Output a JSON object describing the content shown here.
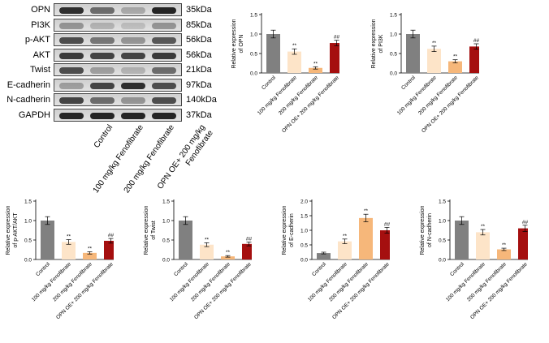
{
  "blot": {
    "proteins": [
      {
        "name": "OPN",
        "size": "35kDa",
        "intensity": [
          0.85,
          0.55,
          0.25,
          0.9
        ]
      },
      {
        "name": "PI3K",
        "size": "85kDa",
        "intensity": [
          0.35,
          0.2,
          0.15,
          0.35
        ]
      },
      {
        "name": "p-AKT",
        "size": "56kDa",
        "intensity": [
          0.7,
          0.5,
          0.35,
          0.65
        ]
      },
      {
        "name": "AKT",
        "size": "56kDa",
        "intensity": [
          0.8,
          0.75,
          0.75,
          0.8
        ]
      },
      {
        "name": "Twist",
        "size": "21kDa",
        "intensity": [
          0.7,
          0.3,
          0.2,
          0.55
        ]
      },
      {
        "name": "E-cadherin",
        "size": "97kDa",
        "intensity": [
          0.3,
          0.75,
          0.85,
          0.7
        ]
      },
      {
        "name": "N-cadherin",
        "size": "140kDa",
        "intensity": [
          0.75,
          0.55,
          0.35,
          0.7
        ]
      },
      {
        "name": "GAPDH",
        "size": "37kDa",
        "intensity": [
          0.9,
          0.9,
          0.9,
          0.9
        ]
      }
    ],
    "lanes": [
      "Control",
      "100 mg/kg Fenofibrate",
      "200 mg/kg Fenofibrate",
      "OPN OE+ 200 mg/kg Fenofibrate"
    ]
  },
  "chart_data": [
    {
      "type": "bar",
      "ylabel_1": "Relative expression",
      "ylabel_2": "of OPN",
      "categories": [
        "Control",
        "100 mg/kg Fenofibrate",
        "200 mg/kg Fenofibrate",
        "OPN OE+ 200 mg/kg Fenofibrate"
      ],
      "values": [
        1.0,
        0.55,
        0.13,
        0.77
      ],
      "errors": [
        0.1,
        0.07,
        0.03,
        0.07
      ],
      "annotations": [
        "",
        "**",
        "**",
        "##"
      ],
      "ylim": [
        0,
        1.5
      ],
      "ticks": [
        "0.0",
        "0.5",
        "1.0",
        "1.5"
      ]
    },
    {
      "type": "bar",
      "ylabel_1": "Relative expression",
      "ylabel_2": "of PI3K",
      "categories": [
        "Control",
        "100 mg/kg Fenofibrate",
        "200 mg/kg Fenofibrate",
        "OPN OE+ 200 mg/kg Fenofibrate"
      ],
      "values": [
        1.0,
        0.62,
        0.3,
        0.68
      ],
      "errors": [
        0.1,
        0.07,
        0.04,
        0.07
      ],
      "annotations": [
        "",
        "**",
        "**",
        "##"
      ],
      "ylim": [
        0,
        1.5
      ],
      "ticks": [
        "0.0",
        "0.5",
        "1.0",
        "1.5"
      ]
    },
    {
      "type": "bar",
      "ylabel_1": "Relative expression",
      "ylabel_2": "of p-AKT/AKT",
      "categories": [
        "Control",
        "100 mg/kg Fenofibrate",
        "200 mg/kg Fenofibrate",
        "OPN OE+ 200 mg/kg Fenofibrate"
      ],
      "values": [
        1.0,
        0.45,
        0.17,
        0.48
      ],
      "errors": [
        0.1,
        0.06,
        0.03,
        0.06
      ],
      "annotations": [
        "",
        "**",
        "**",
        "##"
      ],
      "ylim": [
        0,
        1.5
      ],
      "ticks": [
        "0.0",
        "0.5",
        "1.0",
        "1.5"
      ]
    },
    {
      "type": "bar",
      "ylabel_1": "Relative expression",
      "ylabel_2": "of Twist",
      "categories": [
        "Control",
        "100 mg/kg Fenofibrate",
        "200 mg/kg Fenofibrate",
        "OPN OE+ 200 mg/kg Fenofibrate"
      ],
      "values": [
        1.0,
        0.38,
        0.08,
        0.4
      ],
      "errors": [
        0.1,
        0.05,
        0.02,
        0.05
      ],
      "annotations": [
        "",
        "**",
        "**",
        "##"
      ],
      "ylim": [
        0,
        1.5
      ],
      "ticks": [
        "0.0",
        "0.5",
        "1.0",
        "1.5"
      ]
    },
    {
      "type": "bar",
      "ylabel_1": "Relative expression",
      "ylabel_2": "of E-cadherin",
      "categories": [
        "Control",
        "100 mg/kg Fenofibrate",
        "200 mg/kg Fenofibrate",
        "OPN OE+ 200 mg/kg Fenofibrate"
      ],
      "values": [
        0.22,
        0.62,
        1.42,
        1.0
      ],
      "errors": [
        0.03,
        0.08,
        0.13,
        0.1
      ],
      "annotations": [
        "",
        "**",
        "**",
        "##"
      ],
      "ylim": [
        0,
        2.0
      ],
      "ticks": [
        "0.0",
        "0.5",
        "1.0",
        "1.5",
        "2.0"
      ]
    },
    {
      "type": "bar",
      "ylabel_1": "Relative expression",
      "ylabel_2": "of N-cadherin",
      "categories": [
        "Control",
        "100 mg/kg Fenofibrate",
        "200 mg/kg Fenofibrate",
        "OPN OE+ 200 mg/kg Fenofibrate"
      ],
      "values": [
        1.0,
        0.7,
        0.26,
        0.8
      ],
      "errors": [
        0.1,
        0.07,
        0.03,
        0.08
      ],
      "annotations": [
        "",
        "**",
        "**",
        "##"
      ],
      "ylim": [
        0,
        1.5
      ],
      "ticks": [
        "0.0",
        "0.5",
        "1.0",
        "1.5"
      ]
    }
  ],
  "colors": {
    "bars": [
      "#808080",
      "#fde4c8",
      "#f6b77a",
      "#a50f0f"
    ],
    "axis": "#000000"
  }
}
